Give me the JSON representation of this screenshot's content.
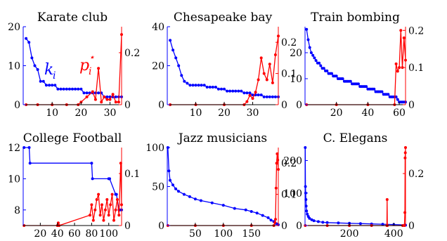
{
  "colors": {
    "left": "#0000ff",
    "right": "#ff0000",
    "axis": "#000000"
  },
  "chart_data": [
    {
      "type": "line",
      "title": "Karate club",
      "xlim": [
        0,
        34
      ],
      "xticks": [
        10,
        20,
        30
      ],
      "ylim_left": [
        0,
        20
      ],
      "yticks_left": [
        0,
        10,
        20
      ],
      "ylim_right": [
        0,
        0.3
      ],
      "yticks_right": [
        0,
        0.2
      ],
      "annotation_left": "k",
      "annotation_left_sub": "i",
      "annotation_right": "p",
      "annotation_right_sub": "i",
      "annotation_right_sup": "⋆",
      "series": [
        {
          "axis": "left",
          "x": [
            1,
            2,
            3,
            4,
            5,
            6,
            7,
            8,
            9,
            10,
            11,
            12,
            13,
            14,
            15,
            16,
            17,
            18,
            19,
            20,
            21,
            22,
            23,
            24,
            25,
            26,
            27,
            28,
            29,
            30,
            31,
            32,
            33,
            34
          ],
          "values": [
            17,
            16,
            12,
            10,
            9,
            6,
            6,
            5,
            5,
            5,
            5,
            4,
            4,
            4,
            4,
            4,
            4,
            4,
            4,
            4,
            3,
            3,
            3,
            3,
            3,
            3,
            3,
            2,
            2,
            2,
            2,
            2,
            2,
            2
          ]
        },
        {
          "axis": "right",
          "x": [
            1,
            5,
            10,
            15,
            19,
            20,
            22,
            24,
            25,
            26,
            27,
            28,
            29,
            30,
            31,
            32,
            33,
            34
          ],
          "values": [
            0,
            0,
            0,
            0,
            0,
            0.01,
            0.03,
            0.05,
            0.02,
            0.14,
            0.01,
            0.03,
            0.02,
            0.02,
            0.04,
            0.01,
            0.01,
            0.27
          ]
        }
      ]
    },
    {
      "type": "line",
      "title": "Chesapeake bay",
      "xlim": [
        0,
        39
      ],
      "xticks": [
        10,
        20,
        30
      ],
      "ylim_left": [
        0,
        40
      ],
      "yticks_left": [
        0,
        20,
        40
      ],
      "ylim_right": [
        0,
        0.25
      ],
      "yticks_right": [
        0,
        0.1,
        0.2
      ],
      "series": [
        {
          "axis": "left",
          "x": [
            1,
            2,
            3,
            4,
            5,
            6,
            7,
            8,
            9,
            10,
            11,
            12,
            13,
            14,
            15,
            16,
            17,
            18,
            19,
            20,
            21,
            22,
            23,
            24,
            25,
            26,
            27,
            28,
            29,
            30,
            31,
            32,
            33,
            34,
            35,
            36,
            37,
            38,
            39
          ],
          "values": [
            33,
            28,
            24,
            20,
            15,
            12,
            11,
            10,
            10,
            10,
            10,
            10,
            10,
            9,
            9,
            9,
            9,
            8,
            8,
            8,
            7,
            7,
            7,
            7,
            7,
            7,
            6,
            6,
            6,
            5,
            5,
            5,
            5,
            4,
            4,
            4,
            4,
            4,
            4
          ]
        },
        {
          "axis": "right",
          "x": [
            1,
            10,
            20,
            27,
            28,
            29,
            30,
            31,
            32,
            33,
            34,
            35,
            36,
            37,
            38,
            39
          ],
          "values": [
            0,
            0,
            0,
            0,
            0.01,
            0.03,
            0.02,
            0.04,
            0.08,
            0.15,
            0.1,
            0.08,
            0.13,
            0.07,
            0.16,
            0.22
          ]
        }
      ]
    },
    {
      "type": "line",
      "title": "Train bombing",
      "xlim": [
        0,
        64
      ],
      "xticks": [
        20,
        40,
        60
      ],
      "ylim_left": [
        0,
        30
      ],
      "yticks_left": [
        0,
        10,
        20
      ],
      "ylim_right": [
        0,
        0.21
      ],
      "yticks_right": [
        0,
        0.1,
        0.2
      ],
      "series": [
        {
          "axis": "left",
          "x": [
            1,
            2,
            3,
            4,
            5,
            6,
            7,
            8,
            9,
            10,
            11,
            12,
            13,
            14,
            15,
            16,
            17,
            18,
            19,
            20,
            21,
            22,
            23,
            24,
            25,
            26,
            27,
            28,
            29,
            30,
            31,
            32,
            33,
            34,
            35,
            36,
            37,
            38,
            39,
            40,
            41,
            42,
            43,
            44,
            45,
            46,
            47,
            48,
            49,
            50,
            51,
            52,
            53,
            54,
            55,
            56,
            57,
            58,
            59,
            60,
            61,
            62,
            63,
            64
          ],
          "values": [
            29,
            25,
            22,
            20,
            19,
            18,
            17,
            16,
            16,
            15,
            14,
            14,
            13,
            13,
            12,
            12,
            12,
            11,
            11,
            11,
            10,
            10,
            10,
            10,
            9,
            9,
            9,
            9,
            9,
            8,
            8,
            8,
            8,
            8,
            7,
            7,
            7,
            7,
            7,
            6,
            6,
            6,
            6,
            6,
            5,
            5,
            5,
            5,
            5,
            4,
            4,
            4,
            4,
            3,
            3,
            3,
            3,
            3,
            2,
            1,
            1,
            1,
            1,
            1
          ]
        },
        {
          "axis": "right",
          "x": [
            1,
            20,
            40,
            57,
            58,
            59,
            60,
            61,
            62,
            63,
            64
          ],
          "values": [
            0,
            0,
            0,
            0,
            0.11,
            0.09,
            0.1,
            0.2,
            0.1,
            0.18,
            0.12
          ]
        }
      ]
    },
    {
      "type": "line",
      "title": "College Football",
      "xlim": [
        0,
        115
      ],
      "xticks": [
        20,
        40,
        60,
        80,
        100
      ],
      "ylim_left": [
        7,
        12
      ],
      "yticks_left": [
        8,
        10,
        12
      ],
      "ylim_right": [
        0,
        0.15
      ],
      "yticks_right": [
        0,
        0.1
      ],
      "series": [
        {
          "axis": "left",
          "x": [
            1,
            7,
            8,
            80,
            81,
            100,
            101,
            108,
            109,
            112,
            113,
            115
          ],
          "values": [
            12,
            12,
            11,
            11,
            10,
            10,
            10,
            9,
            9,
            8,
            8,
            8
          ]
        },
        {
          "axis": "right",
          "x": [
            1,
            40,
            41,
            42,
            78,
            80,
            82,
            84,
            86,
            88,
            90,
            92,
            94,
            96,
            98,
            100,
            102,
            104,
            106,
            108,
            110,
            112,
            114,
            115
          ],
          "values": [
            0,
            0,
            0.005,
            0,
            0.02,
            0.04,
            0.01,
            0.03,
            0.05,
            0.06,
            0.02,
            0.04,
            0.01,
            0.03,
            0.05,
            0.02,
            0.04,
            0.06,
            0.01,
            0.03,
            0.05,
            0.02,
            0.12,
            0.04
          ]
        }
      ]
    },
    {
      "type": "line",
      "title": "Jazz musicians",
      "xlim": [
        0,
        198
      ],
      "xticks": [
        50,
        100,
        150
      ],
      "ylim_left": [
        0,
        100
      ],
      "yticks_left": [
        0,
        50,
        100
      ],
      "ylim_right": [
        0,
        0.25
      ],
      "yticks_right": [
        0,
        0.1,
        0.2
      ],
      "series": [
        {
          "axis": "left",
          "x": [
            1,
            3,
            5,
            10,
            15,
            20,
            30,
            40,
            50,
            60,
            80,
            100,
            120,
            140,
            150,
            160,
            170,
            180,
            185,
            190,
            193,
            196,
            198
          ],
          "values": [
            100,
            70,
            58,
            52,
            47,
            44,
            40,
            37,
            34,
            32,
            29,
            26,
            22,
            20,
            18,
            16,
            13,
            10,
            7,
            5,
            3,
            2,
            1
          ]
        },
        {
          "axis": "right",
          "x": [
            1,
            50,
            100,
            150,
            190,
            192,
            193,
            194,
            195,
            196,
            197,
            198
          ],
          "values": [
            0,
            0,
            0,
            0,
            0,
            0.01,
            0.02,
            0.12,
            0.2,
            0.23,
            0.21,
            0.18
          ]
        }
      ]
    },
    {
      "type": "line",
      "title": "C. Elegans",
      "xlim": [
        0,
        453
      ],
      "xticks": [
        200,
        400
      ],
      "ylim_left": [
        0,
        240
      ],
      "yticks_left": [
        0,
        100,
        200
      ],
      "ylim_right": [
        0,
        0.3
      ],
      "yticks_right": [
        0,
        0.2
      ],
      "series": [
        {
          "axis": "left",
          "x": [
            1,
            2,
            3,
            4,
            5,
            7,
            10,
            15,
            20,
            30,
            40,
            60,
            80,
            100,
            150,
            200,
            250,
            300,
            350,
            400,
            450,
            453
          ],
          "values": [
            240,
            120,
            100,
            80,
            60,
            45,
            35,
            28,
            22,
            18,
            15,
            12,
            10,
            9,
            8,
            7,
            6,
            5,
            4,
            3,
            2,
            1
          ]
        },
        {
          "axis": "right",
          "x": [
            1,
            100,
            200,
            300,
            369,
            370,
            371,
            440,
            448,
            450,
            451,
            452,
            453
          ],
          "values": [
            0,
            0,
            0,
            0,
            0,
            0.1,
            0,
            0,
            0,
            0.05,
            0.26,
            0.28,
            0.3
          ]
        }
      ]
    }
  ]
}
